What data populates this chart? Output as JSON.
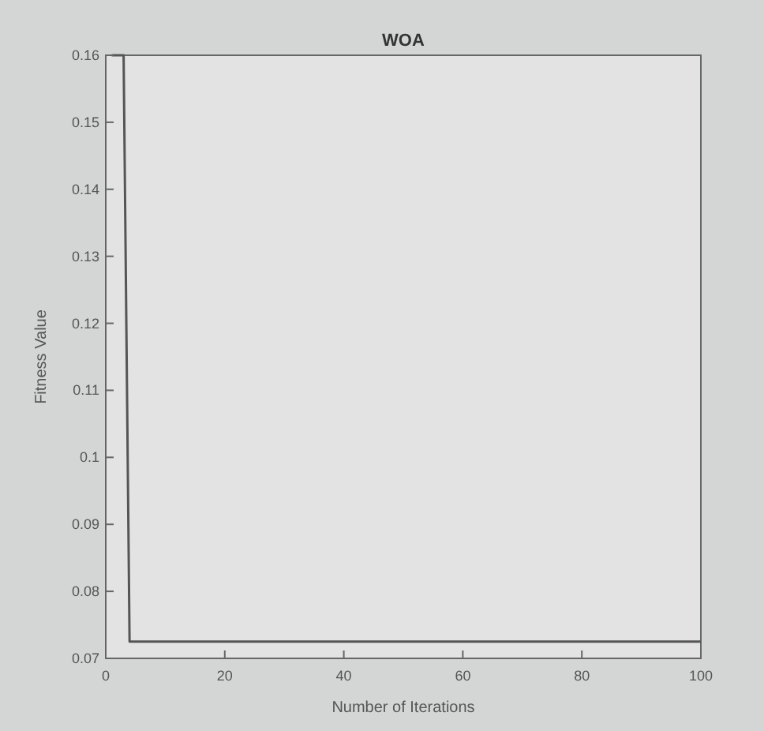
{
  "chart_data": {
    "type": "line",
    "title": "WOA",
    "xlabel": "Number of Iterations",
    "ylabel": "Fitness Value",
    "series": [
      {
        "color": "#555555",
        "x": [
          1,
          3,
          4,
          100
        ],
        "values": [
          0.16,
          0.16,
          0.0725,
          0.0725
        ]
      }
    ],
    "xlim": [
      0,
      100
    ],
    "xticks": [
      0,
      20,
      40,
      60,
      80,
      100
    ],
    "ylim": [
      0.07,
      0.16
    ],
    "yticks": [
      0.07,
      0.08,
      0.09,
      0.1,
      0.11,
      0.12,
      0.13,
      0.14,
      0.15,
      0.16
    ],
    "grid": false,
    "line_style": "solid"
  }
}
